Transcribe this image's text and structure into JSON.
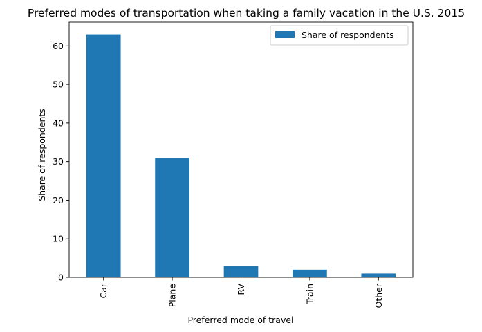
{
  "chart_data": {
    "type": "bar",
    "title": "Preferred modes of transportation when taking a family vacation in the U.S. 2015",
    "xlabel": "Preferred mode of travel",
    "ylabel": "Share of respondents",
    "categories": [
      "Car",
      "Plane",
      "RV",
      "Train",
      "Other"
    ],
    "series": [
      {
        "name": "Share of respondents",
        "values": [
          63,
          31,
          3,
          2,
          1
        ]
      }
    ],
    "ylim": [
      0,
      66.15
    ],
    "yticks": [
      0,
      10,
      20,
      30,
      40,
      50,
      60
    ],
    "grid": false,
    "legend_position": "top-right",
    "bar_color": "#1f77b4"
  }
}
